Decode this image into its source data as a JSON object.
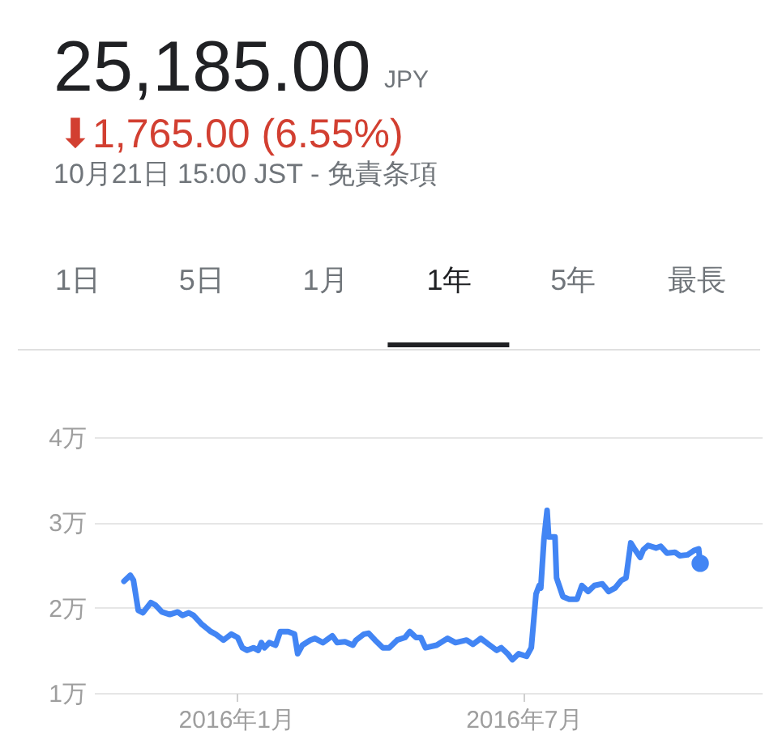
{
  "chart_data": {
    "type": "line",
    "title": "25,185.00",
    "annotations": [
      "JPY",
      "⬇1,765.00 (6.55%)",
      "10月21日 15:00 JST - 免責条項",
      "1日",
      "5日",
      "1月",
      "1年",
      "5年",
      "最長"
    ],
    "x": [
      "2015-10-22",
      "2015-10-26",
      "2015-10-28",
      "2015-10-31",
      "2015-11-03",
      "2015-11-08",
      "2015-11-11",
      "2015-11-15",
      "2015-11-20",
      "2015-11-25",
      "2015-11-28",
      "2015-12-02",
      "2015-12-05",
      "2015-12-10",
      "2015-12-16",
      "2015-12-19",
      "2015-12-24",
      "2015-12-29",
      "2016-01-02",
      "2016-01-05",
      "2016-01-08",
      "2016-01-12",
      "2016-01-15",
      "2016-01-17",
      "2016-01-19",
      "2016-01-22",
      "2016-01-26",
      "2016-01-29",
      "2016-02-03",
      "2016-02-07",
      "2016-02-09",
      "2016-02-12",
      "2016-02-17",
      "2016-02-20",
      "2016-02-25",
      "2016-03-02",
      "2016-03-05",
      "2016-03-10",
      "2016-03-15",
      "2016-03-17",
      "2016-03-22",
      "2016-03-25",
      "2016-03-29",
      "2016-04-03",
      "2016-04-07",
      "2016-04-12",
      "2016-04-17",
      "2016-04-20",
      "2016-04-24",
      "2016-04-27",
      "2016-04-30",
      "2016-05-07",
      "2016-05-14",
      "2016-05-19",
      "2016-05-26",
      "2016-05-30",
      "2016-06-04",
      "2016-06-09",
      "2016-06-14",
      "2016-06-17",
      "2016-06-21",
      "2016-06-24",
      "2016-06-28",
      "2016-07-03",
      "2016-07-06",
      "2016-07-09",
      "2016-07-11",
      "2016-07-12",
      "2016-07-14",
      "2016-07-16",
      "2016-07-17",
      "2016-07-21",
      "2016-07-22",
      "2016-07-26",
      "2016-07-30",
      "2016-08-04",
      "2016-08-07",
      "2016-08-11",
      "2016-08-15",
      "2016-08-20",
      "2016-08-24",
      "2016-08-28",
      "2016-09-01",
      "2016-09-04",
      "2016-09-07",
      "2016-09-09",
      "2016-09-13",
      "2016-09-15",
      "2016-09-18",
      "2016-09-23",
      "2016-09-26",
      "2016-09-30",
      "2016-10-05",
      "2016-10-08",
      "2016-10-13",
      "2016-10-17",
      "2016-10-20",
      "2016-10-21"
    ],
    "series": [
      {
        "color": "#4285f4",
        "values": [
          2.31,
          2.38,
          2.32,
          1.97,
          1.94,
          2.06,
          2.03,
          1.95,
          1.92,
          1.95,
          1.91,
          1.94,
          1.91,
          1.81,
          1.72,
          1.69,
          1.62,
          1.69,
          1.65,
          1.53,
          1.5,
          1.53,
          1.5,
          1.59,
          1.53,
          1.59,
          1.56,
          1.72,
          1.72,
          1.69,
          1.46,
          1.56,
          1.62,
          1.64,
          1.59,
          1.67,
          1.59,
          1.6,
          1.56,
          1.62,
          1.69,
          1.7,
          1.62,
          1.53,
          1.53,
          1.62,
          1.65,
          1.72,
          1.65,
          1.65,
          1.53,
          1.56,
          1.64,
          1.59,
          1.62,
          1.57,
          1.64,
          1.57,
          1.5,
          1.53,
          1.46,
          1.39,
          1.46,
          1.43,
          1.53,
          2.16,
          2.26,
          2.23,
          2.8,
          3.14,
          2.83,
          2.83,
          2.35,
          2.13,
          2.1,
          2.1,
          2.26,
          2.19,
          2.26,
          2.28,
          2.19,
          2.23,
          2.32,
          2.35,
          2.76,
          2.7,
          2.59,
          2.68,
          2.73,
          2.7,
          2.72,
          2.64,
          2.65,
          2.61,
          2.62,
          2.67,
          2.69,
          2.52
        ]
      },
      {
        "type": "scatter",
        "x": [
          "2016-10-21"
        ],
        "color": "#4285f4",
        "marker": "circle",
        "values": [
          2.52
        ]
      }
    ],
    "xlim": [
      "2015-10-03",
      "2016-11-29"
    ],
    "xticks": [
      {
        "value": "2016-01",
        "label": "2016年1月"
      },
      {
        "value": "2016-07",
        "label": "2016年7月"
      }
    ],
    "ylim": [
      1,
      4
    ],
    "yticks": [
      {
        "value": 1,
        "label": "1万"
      },
      {
        "value": 2,
        "label": "2万"
      },
      {
        "value": 3,
        "label": "3万"
      },
      {
        "value": 4,
        "label": "4万"
      }
    ],
    "grid": "y"
  }
}
